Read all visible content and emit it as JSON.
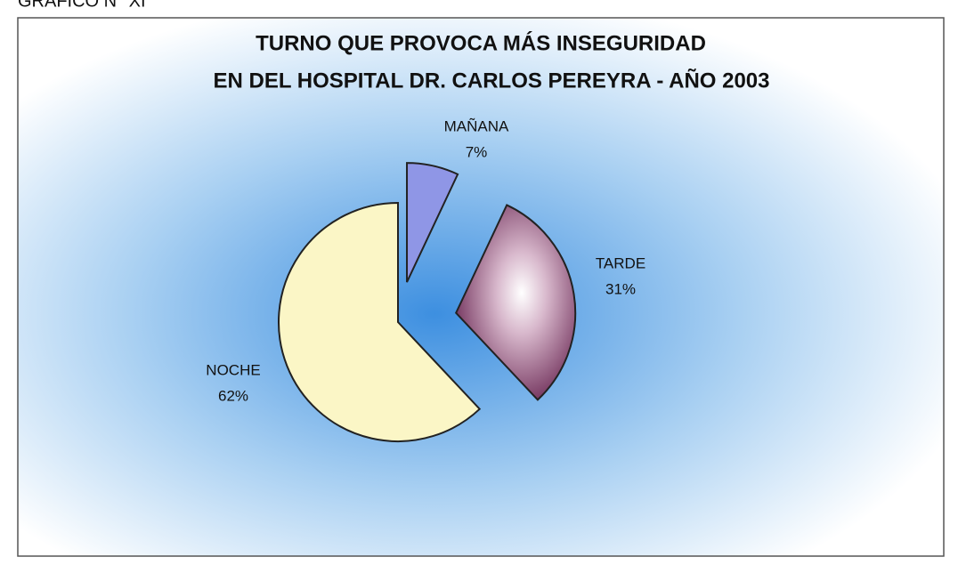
{
  "caption": "GRÁFICO N° XI",
  "chart_data": {
    "type": "pie",
    "title": [
      "TURNO QUE PROVOCA MÁS INSEGURIDAD",
      "EN DEL HOSPITAL DR. CARLOS PEREYRA - AÑO 2003"
    ],
    "categories": [
      "MAÑANA",
      "TARDE",
      "NOCHE"
    ],
    "values": [
      7,
      31,
      62
    ],
    "value_labels": [
      "7%",
      "31%",
      "62%"
    ],
    "colors": [
      "#8f96e6",
      "#7e3d66",
      "#fbf6c6"
    ]
  }
}
